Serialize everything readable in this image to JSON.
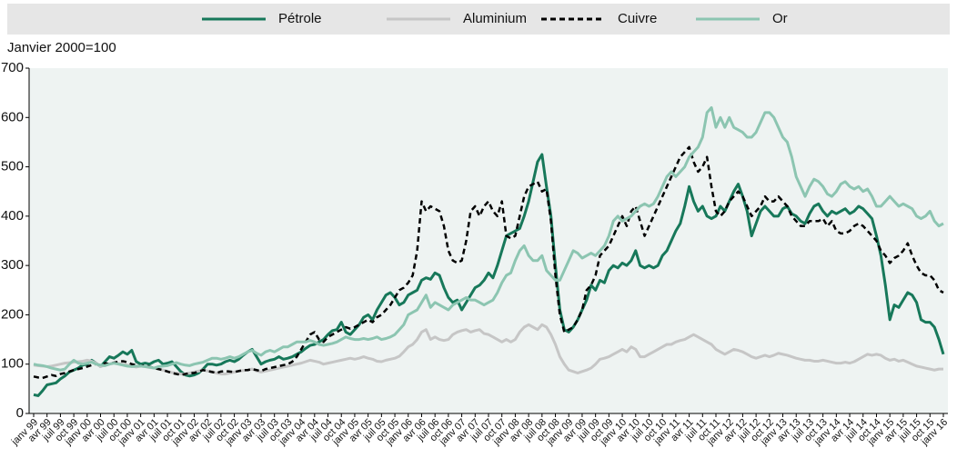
{
  "chart_data": {
    "type": "line",
    "ylabel": "Janvier 2000=100",
    "categories": [
      "janv 99",
      null,
      null,
      "avr 99",
      null,
      null,
      "juil 99",
      null,
      null,
      "oct 99",
      null,
      null,
      "janv 00",
      null,
      null,
      "avr 00",
      null,
      null,
      "juil 00",
      null,
      null,
      "oct 00",
      null,
      null,
      "janv 01",
      null,
      null,
      "avr 01",
      null,
      null,
      "juil 01",
      null,
      null,
      "oct 01",
      null,
      null,
      "janv 02",
      null,
      null,
      "avr 02",
      null,
      null,
      "juil 02",
      null,
      null,
      "oct 02",
      null,
      null,
      "janv 03",
      null,
      null,
      "avr 03",
      null,
      null,
      "juil 03",
      null,
      null,
      "oct 03",
      null,
      null,
      "janv 04",
      null,
      null,
      "avr 04",
      null,
      null,
      "juil 04",
      null,
      null,
      "oct 04",
      null,
      null,
      "janv 05",
      null,
      null,
      "avr 05",
      null,
      null,
      "juil 05",
      null,
      null,
      "oct 05",
      null,
      null,
      "janv 06",
      null,
      null,
      "avr 06",
      null,
      null,
      "juil 06",
      null,
      null,
      "oct 06",
      null,
      null,
      "janv 07",
      null,
      null,
      "avr 07",
      null,
      null,
      "juil 07",
      null,
      null,
      "oct 07",
      null,
      null,
      "janv 08",
      null,
      null,
      "avr 08",
      null,
      null,
      "juil 08",
      null,
      null,
      "oct 08",
      null,
      null,
      "janv 09",
      null,
      null,
      "avr 09",
      null,
      null,
      "juil 09",
      null,
      null,
      "oct 09",
      null,
      null,
      "janv 10",
      null,
      null,
      "avr 10",
      null,
      null,
      "juil 10",
      null,
      null,
      "oct 10",
      null,
      null,
      "janv 11",
      null,
      null,
      "avr 11",
      null,
      null,
      "juil 11",
      null,
      null,
      "oct 11",
      null,
      null,
      "janv 12",
      null,
      null,
      "avr 12",
      null,
      null,
      "juil 12",
      null,
      null,
      "oct 12",
      null,
      null,
      "janv 13",
      null,
      null,
      "avr 13",
      null,
      null,
      "juil 13",
      null,
      null,
      "oct 13",
      null,
      null,
      "janv 14",
      null,
      null,
      "avr 14",
      null,
      null,
      "juil 14",
      null,
      null,
      "oct 14",
      null,
      null,
      "janv 15",
      null,
      null,
      "avr 15",
      null,
      null,
      "juil 15",
      null,
      null,
      "oct 15",
      null,
      null,
      "janv 16"
    ],
    "series": [
      {
        "name": "Pétrole",
        "color": "#17785a",
        "values": [
          38,
          36,
          46,
          58,
          60,
          62,
          70,
          76,
          84,
          88,
          92,
          98,
          100,
          108,
          102,
          95,
          105,
          115,
          112,
          118,
          125,
          120,
          128,
          105,
          100,
          102,
          100,
          105,
          108,
          100,
          102,
          105,
          95,
          85,
          78,
          76,
          78,
          82,
          90,
          100,
          100,
          98,
          100,
          105,
          108,
          105,
          110,
          118,
          125,
          130,
          115,
          100,
          105,
          108,
          110,
          115,
          110,
          112,
          115,
          120,
          125,
          132,
          138,
          140,
          145,
          150,
          160,
          168,
          170,
          185,
          165,
          160,
          170,
          180,
          195,
          200,
          190,
          210,
          225,
          240,
          245,
          235,
          220,
          225,
          240,
          245,
          250,
          270,
          275,
          272,
          285,
          280,
          255,
          235,
          225,
          230,
          210,
          225,
          240,
          255,
          260,
          270,
          285,
          275,
          300,
          330,
          360,
          365,
          370,
          375,
          400,
          430,
          470,
          510,
          525,
          460,
          400,
          300,
          210,
          170,
          165,
          175,
          190,
          210,
          230,
          260,
          250,
          270,
          265,
          290,
          300,
          295,
          305,
          300,
          310,
          330,
          300,
          295,
          300,
          295,
          300,
          320,
          330,
          350,
          370,
          385,
          420,
          460,
          430,
          410,
          420,
          400,
          395,
          400,
          420,
          410,
          430,
          450,
          465,
          440,
          410,
          360,
          385,
          410,
          420,
          410,
          400,
          400,
          415,
          420,
          405,
          400,
          390,
          385,
          405,
          420,
          425,
          410,
          400,
          410,
          405,
          410,
          415,
          405,
          410,
          420,
          415,
          405,
          395,
          360,
          320,
          260,
          190,
          220,
          215,
          230,
          245,
          240,
          225,
          190,
          185,
          185,
          175,
          150,
          120
        ]
      },
      {
        "name": "Aluminium",
        "color": "#c6c6c6",
        "values": [
          98,
          97,
          96,
          95,
          96,
          98,
          100,
          102,
          103,
          104,
          105,
          106,
          108,
          106,
          102,
          95,
          98,
          100,
          103,
          101,
          100,
          98,
          96,
          94,
          96,
          95,
          93,
          92,
          90,
          88,
          85,
          83,
          82,
          80,
          80,
          82,
          84,
          86,
          88,
          86,
          85,
          82,
          80,
          80,
          82,
          84,
          86,
          87,
          88,
          90,
          86,
          84,
          86,
          88,
          90,
          92,
          94,
          96,
          98,
          100,
          102,
          105,
          108,
          106,
          104,
          100,
          102,
          104,
          106,
          108,
          110,
          112,
          110,
          112,
          115,
          112,
          110,
          106,
          105,
          108,
          110,
          112,
          116,
          125,
          135,
          140,
          150,
          165,
          170,
          150,
          155,
          150,
          148,
          150,
          160,
          165,
          168,
          170,
          165,
          168,
          170,
          162,
          160,
          155,
          150,
          145,
          150,
          145,
          150,
          165,
          175,
          180,
          175,
          170,
          180,
          175,
          160,
          140,
          115,
          100,
          88,
          85,
          82,
          85,
          88,
          92,
          100,
          110,
          112,
          115,
          120,
          125,
          130,
          125,
          135,
          130,
          115,
          115,
          120,
          125,
          130,
          135,
          140,
          140,
          145,
          148,
          150,
          155,
          160,
          155,
          150,
          145,
          140,
          130,
          125,
          120,
          125,
          130,
          128,
          125,
          120,
          115,
          112,
          115,
          118,
          115,
          118,
          122,
          120,
          118,
          115,
          112,
          110,
          108,
          108,
          106,
          106,
          108,
          106,
          104,
          102,
          102,
          104,
          102,
          105,
          110,
          115,
          120,
          118,
          120,
          118,
          112,
          108,
          110,
          106,
          108,
          104,
          100,
          96,
          94,
          92,
          90,
          88,
          90,
          90
        ]
      },
      {
        "name": "Cuivre",
        "color": "#000000",
        "dashed": true,
        "values": [
          75,
          73,
          72,
          75,
          78,
          76,
          80,
          82,
          85,
          88,
          90,
          92,
          95,
          98,
          100,
          98,
          102,
          100,
          103,
          105,
          106,
          104,
          100,
          98,
          96,
          98,
          95,
          92,
          90,
          88,
          85,
          82,
          80,
          78,
          80,
          82,
          82,
          85,
          88,
          86,
          84,
          82,
          85,
          86,
          85,
          84,
          86,
          88,
          88,
          90,
          88,
          86,
          90,
          92,
          94,
          96,
          98,
          100,
          105,
          115,
          130,
          145,
          160,
          165,
          150,
          145,
          155,
          160,
          165,
          170,
          175,
          172,
          175,
          180,
          185,
          190,
          185,
          195,
          200,
          210,
          220,
          235,
          250,
          255,
          265,
          280,
          330,
          430,
          410,
          420,
          415,
          410,
          380,
          330,
          310,
          305,
          310,
          350,
          410,
          420,
          400,
          420,
          430,
          410,
          400,
          430,
          360,
          355,
          360,
          400,
          440,
          460,
          465,
          470,
          450,
          455,
          390,
          280,
          200,
          165,
          170,
          175,
          190,
          210,
          250,
          260,
          280,
          320,
          330,
          340,
          360,
          380,
          400,
          380,
          410,
          420,
          390,
          360,
          380,
          400,
          420,
          440,
          460,
          480,
          500,
          520,
          530,
          540,
          510,
          490,
          500,
          520,
          460,
          410,
          400,
          410,
          430,
          440,
          450,
          440,
          420,
          400,
          410,
          420,
          440,
          430,
          430,
          440,
          430,
          420,
          400,
          390,
          380,
          380,
          390,
          390,
          390,
          395,
          380,
          390,
          370,
          365,
          365,
          370,
          380,
          385,
          380,
          370,
          360,
          350,
          330,
          320,
          305,
          315,
          320,
          330,
          345,
          320,
          300,
          285,
          280,
          280,
          270,
          250,
          245
        ]
      },
      {
        "name": "Or",
        "color": "#8cc5b1",
        "values": [
          100,
          98,
          97,
          95,
          92,
          90,
          88,
          90,
          100,
          108,
          102,
          100,
          102,
          104,
          100,
          98,
          97,
          100,
          102,
          100,
          98,
          96,
          95,
          96,
          96,
          95,
          94,
          92,
          95,
          96,
          97,
          100,
          103,
          100,
          98,
          97,
          100,
          102,
          104,
          108,
          112,
          112,
          110,
          112,
          115,
          112,
          115,
          120,
          125,
          128,
          122,
          118,
          125,
          128,
          125,
          130,
          135,
          135,
          140,
          145,
          145,
          145,
          148,
          145,
          140,
          138,
          140,
          142,
          145,
          150,
          155,
          152,
          150,
          150,
          152,
          150,
          152,
          155,
          150,
          152,
          155,
          160,
          170,
          180,
          200,
          205,
          210,
          225,
          240,
          215,
          225,
          220,
          215,
          210,
          220,
          225,
          230,
          235,
          230,
          230,
          225,
          220,
          225,
          230,
          245,
          265,
          280,
          285,
          310,
          330,
          340,
          320,
          310,
          310,
          320,
          290,
          280,
          270,
          270,
          290,
          310,
          330,
          325,
          315,
          320,
          325,
          320,
          330,
          340,
          360,
          390,
          400,
          390,
          395,
          400,
          410,
          420,
          425,
          420,
          425,
          440,
          460,
          480,
          490,
          480,
          490,
          500,
          520,
          530,
          540,
          560,
          610,
          620,
          580,
          600,
          580,
          600,
          580,
          575,
          570,
          560,
          560,
          570,
          590,
          610,
          610,
          600,
          580,
          560,
          550,
          520,
          480,
          460,
          440,
          460,
          475,
          470,
          460,
          445,
          440,
          450,
          465,
          470,
          460,
          455,
          460,
          450,
          455,
          440,
          420,
          420,
          430,
          440,
          430,
          420,
          425,
          420,
          415,
          400,
          395,
          400,
          410,
          390,
          380,
          385
        ]
      }
    ],
    "ylim": [
      0,
      700
    ],
    "yticks": [
      0,
      100,
      200,
      300,
      400,
      500,
      600,
      700
    ]
  }
}
